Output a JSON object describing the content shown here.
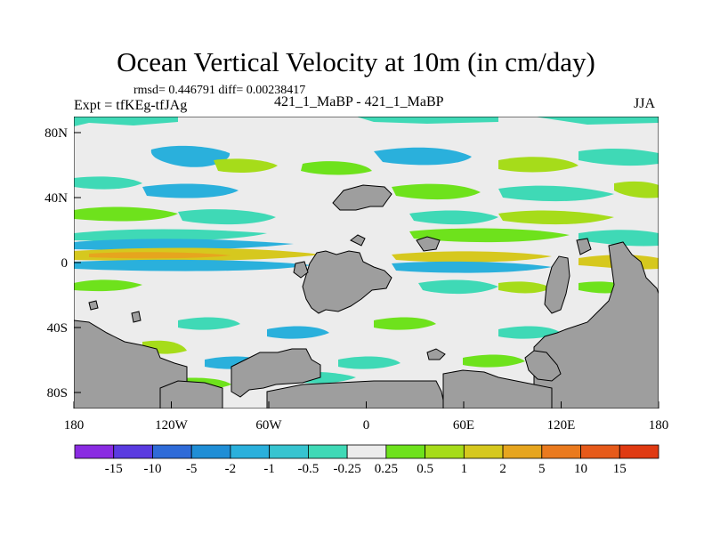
{
  "title": "Ocean Vertical Velocity at 10m (in cm/day)",
  "stats": "rmsd= 0.446791 diff= 0.00238417",
  "experiment": "Expt = tfKEg-tfJAg",
  "center_label": "421_1_MaBP - 421_1_MaBP",
  "season": "JJA",
  "axes": {
    "x_ticks": [
      "180",
      "120W",
      "60W",
      "0",
      "60E",
      "120E",
      "180"
    ],
    "y_ticks": [
      "80N",
      "40N",
      "0",
      "40S",
      "80S"
    ]
  },
  "colorbar": {
    "labels": [
      "-15",
      "-10",
      "-5",
      "-2",
      "-1",
      "-0.5",
      "-0.25",
      "0.25",
      "0.5",
      "1",
      "2",
      "5",
      "10",
      "15"
    ],
    "colors": [
      "#8a2be2",
      "#5a3be0",
      "#2f6bd8",
      "#1f8ed6",
      "#2ab0dc",
      "#37c4d0",
      "#3fd9b6",
      "#ececec",
      "#6ee21c",
      "#a6dc1a",
      "#d6c81e",
      "#e6a51e",
      "#ea7a1e",
      "#e65a1a",
      "#e03a12"
    ]
  },
  "palette": {
    "land": "#9e9e9e",
    "ocean_neutral": "#ececec",
    "negative_weak": "#3fd9b6",
    "negative": "#2ab0dc",
    "positive_weak": "#6ee21c",
    "positive": "#a6dc1a",
    "positive_strong": "#d6c81e",
    "positive_stronger": "#e6a51e"
  }
}
